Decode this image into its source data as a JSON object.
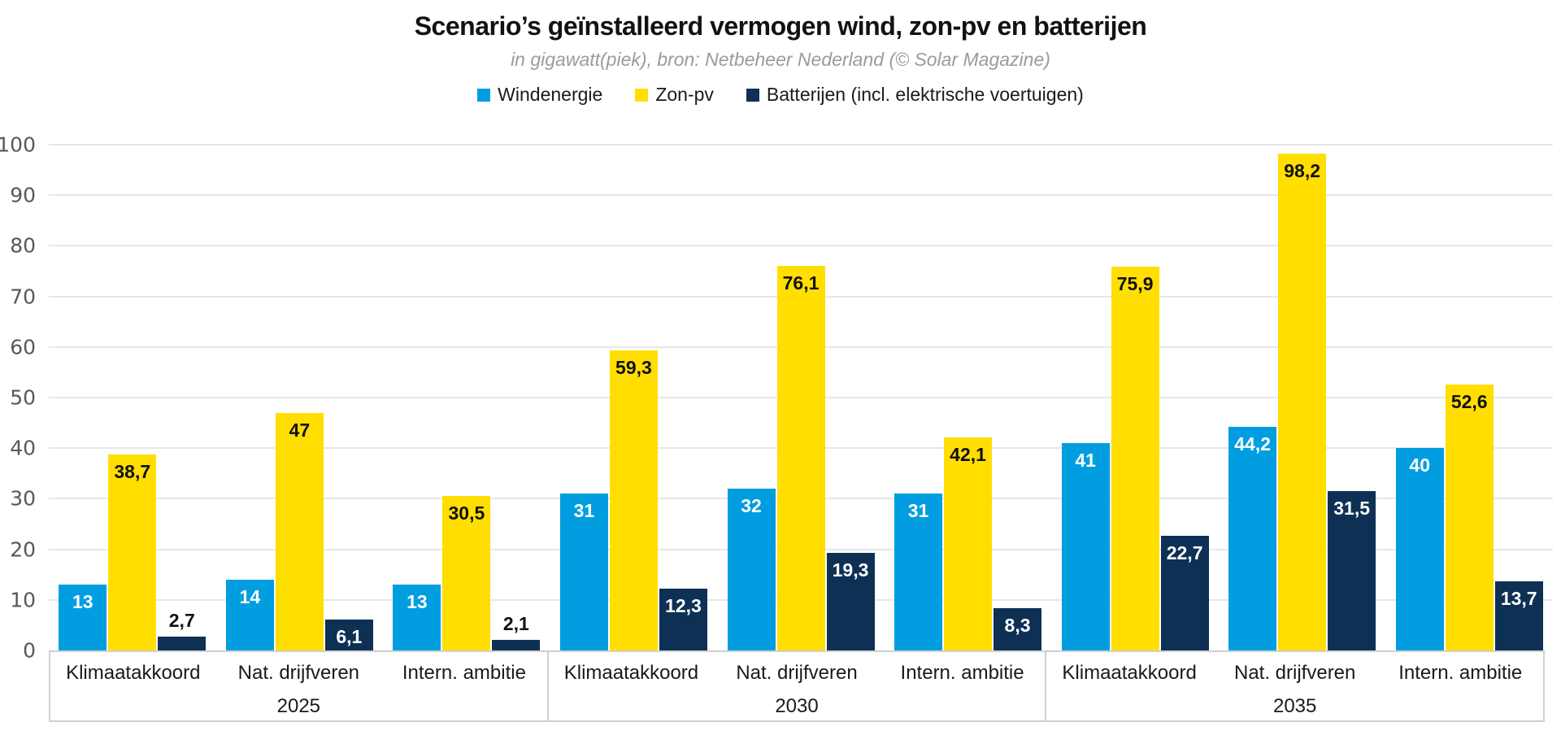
{
  "chart_data": {
    "type": "bar",
    "title": "Scenario’s geïnstalleerd vermogen wind, zon-pv en batterijen",
    "subtitle": "in gigawatt(piek), bron: Netbeheer Nederland (© Solar Magazine)",
    "ylim": [
      0,
      100
    ],
    "yticks": [
      0,
      10,
      20,
      30,
      40,
      50,
      60,
      70,
      80,
      90,
      100
    ],
    "grid": true,
    "legend_position": "top",
    "decimal_separator": ",",
    "groups": [
      {
        "year": "2025",
        "scenarios": [
          "Klimaatakkoord",
          "Nat. drijfveren",
          "Intern. ambitie"
        ]
      },
      {
        "year": "2030",
        "scenarios": [
          "Klimaatakkoord",
          "Nat. drijfveren",
          "Intern. ambitie"
        ]
      },
      {
        "year": "2035",
        "scenarios": [
          "Klimaatakkoord",
          "Nat. drijfveren",
          "Intern. ambitie"
        ]
      }
    ],
    "series": [
      {
        "name": "Windenergie",
        "color": "#009EE0",
        "label_color_inside": "#ffffff",
        "values": [
          13,
          14,
          13,
          31,
          32,
          31,
          41,
          44.2,
          40
        ],
        "labels": [
          "13",
          "14",
          "13",
          "31",
          "32",
          "31",
          "41",
          "44,2",
          "40"
        ]
      },
      {
        "name": "Zon-pv",
        "color": "#FFDE00",
        "label_color_inside": "#111111",
        "values": [
          38.7,
          47,
          30.5,
          59.3,
          76.1,
          42.1,
          75.9,
          98.2,
          52.6
        ],
        "labels": [
          "38,7",
          "47",
          "30,5",
          "59,3",
          "76,1",
          "42,1",
          "75,9",
          "98,2",
          "52,6"
        ]
      },
      {
        "name": "Batterijen (incl. elektrische voertuigen)",
        "color": "#0E3055",
        "label_color_inside": "#ffffff",
        "values": [
          2.7,
          6.1,
          2.1,
          12.3,
          19.3,
          8.3,
          22.7,
          31.5,
          13.7
        ],
        "labels": [
          "2,7",
          "6,1",
          "2,1",
          "12,3",
          "19,3",
          "8,3",
          "22,7",
          "31,5",
          "13,7"
        ]
      }
    ]
  }
}
